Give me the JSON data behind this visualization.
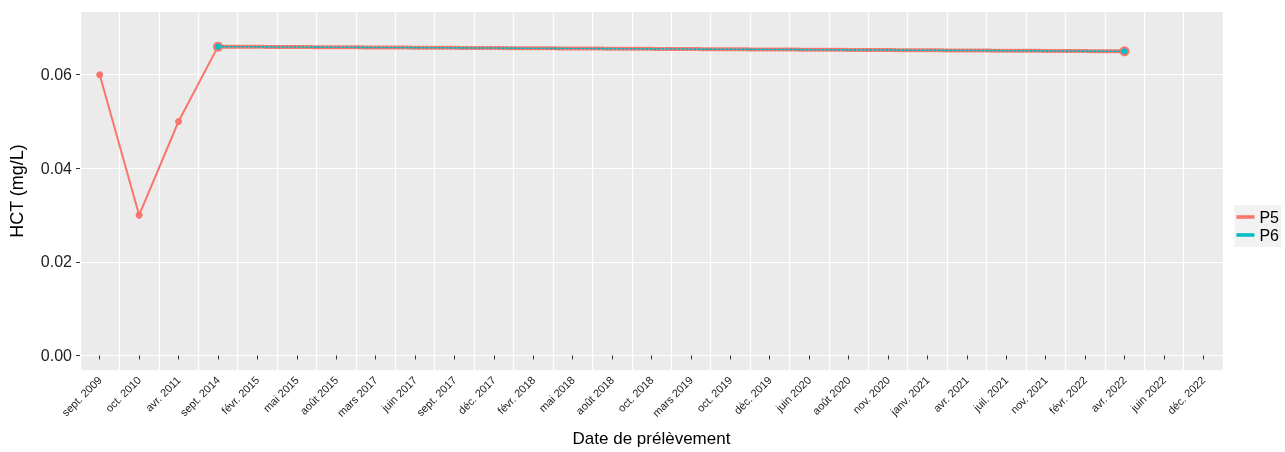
{
  "chart_data": {
    "type": "line",
    "xlabel": "Date de prélèvement",
    "ylabel": "HCT (mg/L)",
    "categories": [
      "sept. 2009",
      "oct. 2010",
      "avr. 2011",
      "sept. 2014",
      "févr. 2015",
      "mai 2015",
      "août 2015",
      "mars 2017",
      "juin 2017",
      "sept. 2017",
      "déc. 2017",
      "févr. 2018",
      "mai 2018",
      "août 2018",
      "oct. 2018",
      "mars 2019",
      "oct. 2019",
      "déc. 2019",
      "juin 2020",
      "août 2020",
      "nov. 2020",
      "janv. 2021",
      "avr. 2021",
      "juil. 2021",
      "nov. 2021",
      "févr. 2022",
      "avr. 2022",
      "juin 2022",
      "déc. 2022"
    ],
    "series": [
      {
        "name": "P5",
        "color": "#f8766d",
        "values": [
          0.06,
          0.03,
          0.05,
          0.066,
          null,
          null,
          null,
          null,
          null,
          null,
          null,
          null,
          null,
          null,
          null,
          null,
          null,
          null,
          null,
          null,
          null,
          null,
          null,
          null,
          null,
          null,
          0.065,
          null,
          null
        ]
      },
      {
        "name": "P6",
        "color": "#00bfc4",
        "line_style": "dotted",
        "values": [
          null,
          null,
          null,
          0.066,
          null,
          null,
          null,
          null,
          null,
          null,
          null,
          null,
          null,
          null,
          null,
          null,
          null,
          null,
          null,
          null,
          null,
          null,
          null,
          null,
          null,
          null,
          0.065,
          null,
          null
        ]
      }
    ],
    "ylim": [
      -0.0031,
      0.0734
    ],
    "yticks": [
      {
        "value": 0,
        "label": "0.00"
      },
      {
        "value": 0.02,
        "label": "0.02"
      },
      {
        "value": 0.04,
        "label": "0.04"
      },
      {
        "value": 0.06,
        "label": "0.06"
      }
    ],
    "grid": true,
    "legend": "right",
    "marker": "circle",
    "line_style": "solid"
  }
}
